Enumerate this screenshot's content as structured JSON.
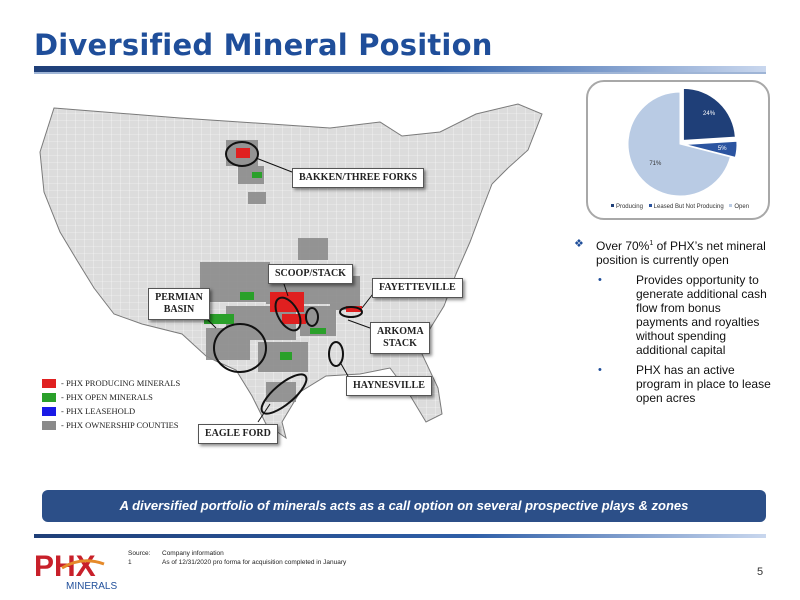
{
  "title": "Diversified Mineral Position",
  "map": {
    "callouts": {
      "bakken": "BAKKEN/THREE FORKS",
      "scoop": "SCOOP/STACK",
      "permian": "PERMIAN BASIN",
      "fayetteville": "FAYETTEVILLE",
      "arkoma": "ARKOMA STACK",
      "haynesville": "HAYNESVILLE",
      "eagle_ford": "EAGLE FORD"
    },
    "legend": [
      {
        "label": "- PHX PRODUCING MINERALS",
        "color": "#e02020"
      },
      {
        "label": "- PHX OPEN MINERALS",
        "color": "#2aa02a"
      },
      {
        "label": "- PHX LEASEHOLD",
        "color": "#1a1ae6"
      },
      {
        "label": "- PHX OWNERSHIP COUNTIES",
        "color": "#8a8a8a"
      }
    ]
  },
  "chart_data": {
    "type": "pie",
    "slices": [
      {
        "label": "Producing",
        "value": 24,
        "display": "24%",
        "color": "#1f3f78"
      },
      {
        "label": "Leased But Not Producing",
        "value": 5,
        "display": "5%",
        "color": "#2b54a0"
      },
      {
        "label": "Open",
        "value": 71,
        "display": "71%",
        "color": "#b9cbe4"
      }
    ],
    "legend_position": "bottom"
  },
  "bullets": {
    "main_prefix": "Over 70%",
    "main_sup": "1",
    "main_suffix": " of PHX’s net mineral position is currently open",
    "sub": [
      "Provides opportunity to generate additional cash flow from bonus payments and royalties without spending additional capital",
      "PHX has an active program in place to lease open acres"
    ]
  },
  "banner": "A diversified portfolio of minerals acts as a call option on several prospective plays & zones",
  "logo": {
    "mark": "PHX",
    "word": "MINERALS"
  },
  "footnotes": [
    {
      "label": "Source:",
      "text": "Company information"
    },
    {
      "label": "1",
      "text": "As of 12/31/2020 pro forma for acquisition completed in January"
    }
  ],
  "page_number": "5"
}
